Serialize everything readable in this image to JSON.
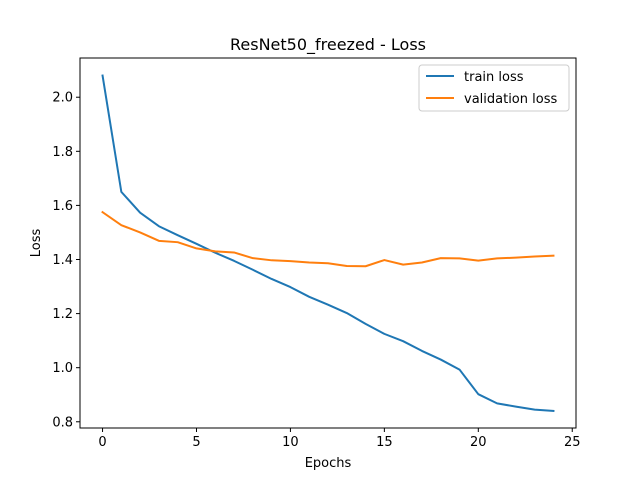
{
  "chart_data": {
    "type": "line",
    "title": "ResNet50_freezed - Loss",
    "xlabel": "Epochs",
    "ylabel": "Loss",
    "xlim": [
      -1.2,
      25.2
    ],
    "ylim": [
      0.777,
      2.145
    ],
    "xticks": [
      0,
      5,
      10,
      15,
      20,
      25
    ],
    "yticks": [
      0.8,
      1.0,
      1.2,
      1.4,
      1.6,
      1.8,
      2.0
    ],
    "xtick_labels": [
      "0",
      "5",
      "10",
      "15",
      "20",
      "25"
    ],
    "ytick_labels": [
      "0.8",
      "1.0",
      "1.2",
      "1.4",
      "1.6",
      "1.8",
      "2.0"
    ],
    "grid": false,
    "legend_position": "top-right",
    "x": [
      0,
      1,
      2,
      3,
      4,
      5,
      6,
      7,
      8,
      9,
      10,
      11,
      12,
      13,
      14,
      15,
      16,
      17,
      18,
      19,
      20,
      21,
      22,
      23,
      24
    ],
    "series": [
      {
        "name": "train loss",
        "color": "#1f77b4",
        "values": [
          2.08,
          1.65,
          1.573,
          1.523,
          1.49,
          1.458,
          1.425,
          1.395,
          1.362,
          1.328,
          1.298,
          1.262,
          1.233,
          1.202,
          1.162,
          1.125,
          1.098,
          1.062,
          1.03,
          0.993,
          0.902,
          0.868,
          0.856,
          0.845,
          0.84
        ]
      },
      {
        "name": "validation loss",
        "color": "#ff7f0e",
        "values": [
          1.575,
          1.527,
          1.5,
          1.469,
          1.464,
          1.441,
          1.43,
          1.426,
          1.405,
          1.397,
          1.394,
          1.389,
          1.386,
          1.376,
          1.375,
          1.398,
          1.381,
          1.389,
          1.405,
          1.404,
          1.396,
          1.404,
          1.407,
          1.411,
          1.414
        ]
      }
    ]
  }
}
